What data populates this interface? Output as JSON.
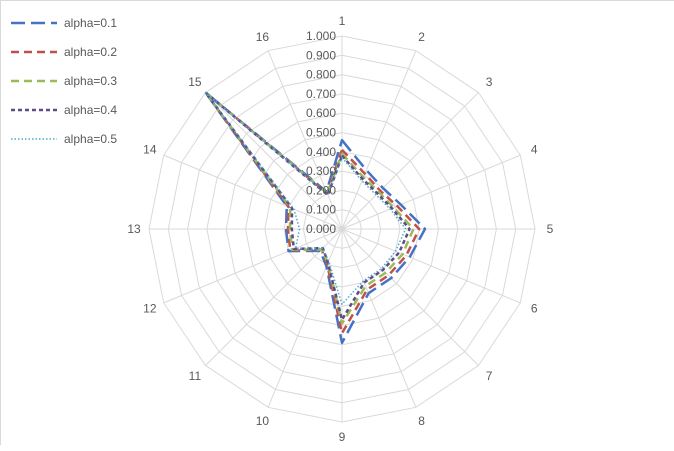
{
  "chart_data": {
    "type": "radar",
    "categories": [
      "1",
      "2",
      "3",
      "4",
      "5",
      "6",
      "7",
      "8",
      "9",
      "10",
      "11",
      "12",
      "13",
      "14",
      "15",
      "16"
    ],
    "radial_ticks": [
      "0.000",
      "0.100",
      "0.200",
      "0.300",
      "0.400",
      "0.500",
      "0.600",
      "0.700",
      "0.800",
      "0.900",
      "1.000"
    ],
    "rlim": [
      0,
      1
    ],
    "grid": true,
    "legend_position": "top-left",
    "series": [
      {
        "name": "alpha=0.1",
        "color": "#4472c4",
        "dash": "long-dash",
        "values": [
          0.46,
          0.33,
          0.3,
          0.33,
          0.43,
          0.38,
          0.36,
          0.36,
          0.59,
          0.21,
          0.16,
          0.3,
          0.29,
          0.31,
          1.0,
          0.21
        ]
      },
      {
        "name": "alpha=0.2",
        "color": "#c0504d",
        "dash": "dash",
        "values": [
          0.41,
          0.31,
          0.28,
          0.31,
          0.4,
          0.36,
          0.34,
          0.34,
          0.54,
          0.2,
          0.15,
          0.29,
          0.28,
          0.3,
          1.0,
          0.2
        ]
      },
      {
        "name": "alpha=0.3",
        "color": "#9bbb59",
        "dash": "dash",
        "values": [
          0.39,
          0.29,
          0.27,
          0.29,
          0.37,
          0.34,
          0.32,
          0.32,
          0.49,
          0.19,
          0.15,
          0.28,
          0.27,
          0.29,
          1.0,
          0.2
        ]
      },
      {
        "name": "alpha=0.4",
        "color": "#5f4b8b",
        "dash": "short-dash",
        "values": [
          0.38,
          0.28,
          0.26,
          0.28,
          0.35,
          0.32,
          0.3,
          0.3,
          0.47,
          0.19,
          0.14,
          0.27,
          0.26,
          0.28,
          1.0,
          0.19
        ]
      },
      {
        "name": "alpha=0.5",
        "color": "#4bacc6",
        "dash": "dot",
        "values": [
          0.37,
          0.27,
          0.25,
          0.27,
          0.33,
          0.3,
          0.29,
          0.29,
          0.39,
          0.18,
          0.14,
          0.26,
          0.22,
          0.27,
          1.0,
          0.19
        ]
      }
    ]
  }
}
